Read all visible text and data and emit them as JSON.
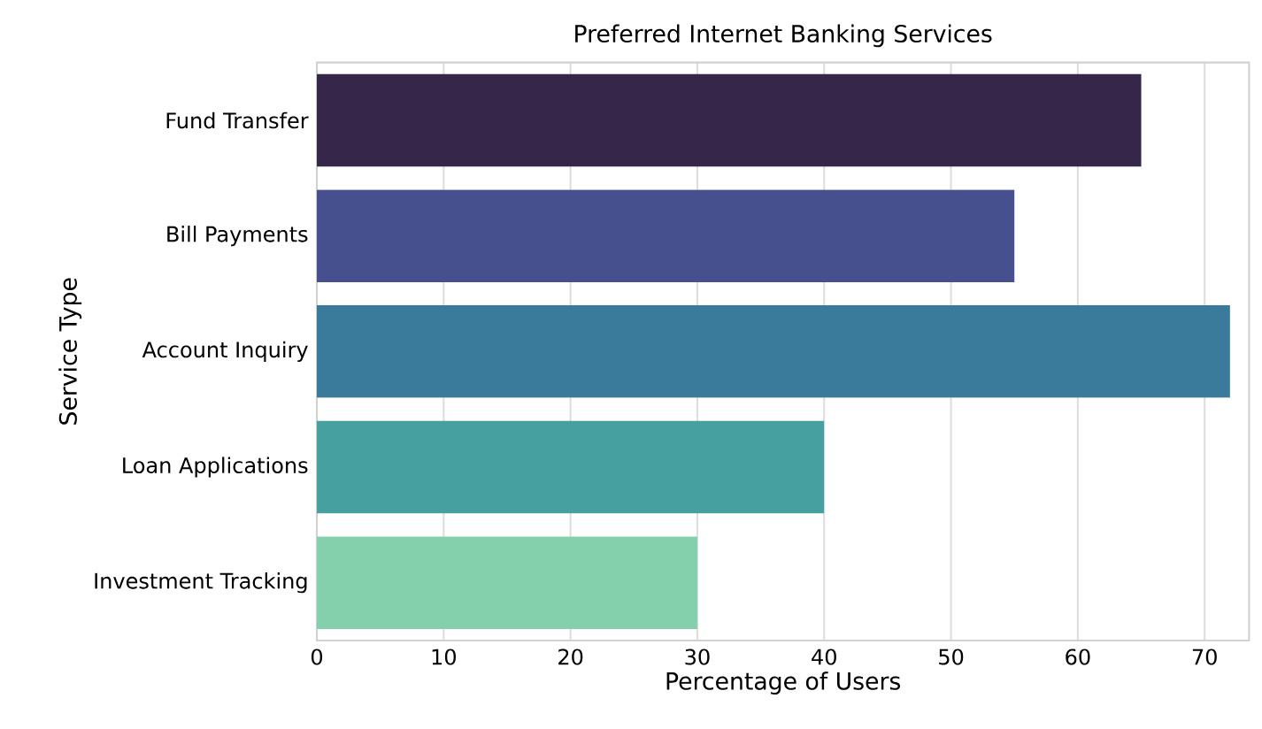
{
  "chart_data": {
    "type": "bar",
    "orientation": "horizontal",
    "title": "Preferred Internet Banking Services",
    "xlabel": "Percentage of Users",
    "ylabel": "Service Type",
    "categories": [
      "Fund Transfer",
      "Bill Payments",
      "Account Inquiry",
      "Loan Applications",
      "Investment Tracking"
    ],
    "values": [
      65,
      55,
      72,
      40,
      30
    ],
    "colors": [
      "#35264a",
      "#46508e",
      "#3a7a9b",
      "#47a0a0",
      "#84d0ad"
    ],
    "xlim": [
      0,
      73.5
    ],
    "xticks": [
      0,
      10,
      20,
      30,
      40,
      50,
      60,
      70
    ],
    "grid": "x"
  }
}
